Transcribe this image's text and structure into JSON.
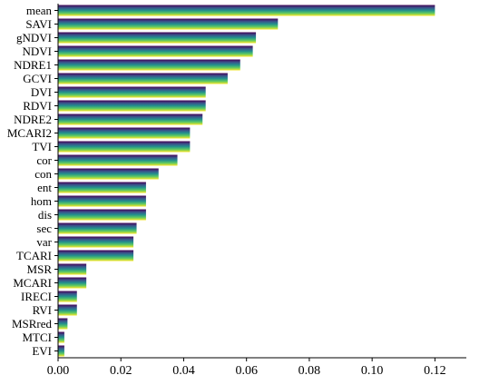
{
  "chart_data": {
    "type": "bar",
    "orientation": "horizontal",
    "title": "",
    "xlabel": "",
    "ylabel": "",
    "xlim": [
      0,
      0.13
    ],
    "xticks": [
      "0.00",
      "0.02",
      "0.04",
      "0.06",
      "0.08",
      "0.10",
      "0.12"
    ],
    "grid": false,
    "legend": "none",
    "bar_gradient_colors": [
      "#440154",
      "#3b528b",
      "#21918c",
      "#5ec962",
      "#fde725"
    ],
    "categories": [
      "mean",
      "SAVI",
      "gNDVI",
      "NDVI",
      "NDRE1",
      "GCVI",
      "DVI",
      "RDVI",
      "NDRE2",
      "MCARI2",
      "TVI",
      "cor",
      "con",
      "ent",
      "hom",
      "dis",
      "sec",
      "var",
      "TCARI",
      "MSR",
      "MCARI",
      "IRECI",
      "RVI",
      "MSRred",
      "MTCI",
      "EVI"
    ],
    "values": [
      0.12,
      0.07,
      0.063,
      0.062,
      0.058,
      0.054,
      0.047,
      0.047,
      0.046,
      0.042,
      0.042,
      0.038,
      0.032,
      0.028,
      0.028,
      0.028,
      0.025,
      0.024,
      0.024,
      0.009,
      0.009,
      0.006,
      0.006,
      0.003,
      0.002,
      0.002
    ]
  }
}
